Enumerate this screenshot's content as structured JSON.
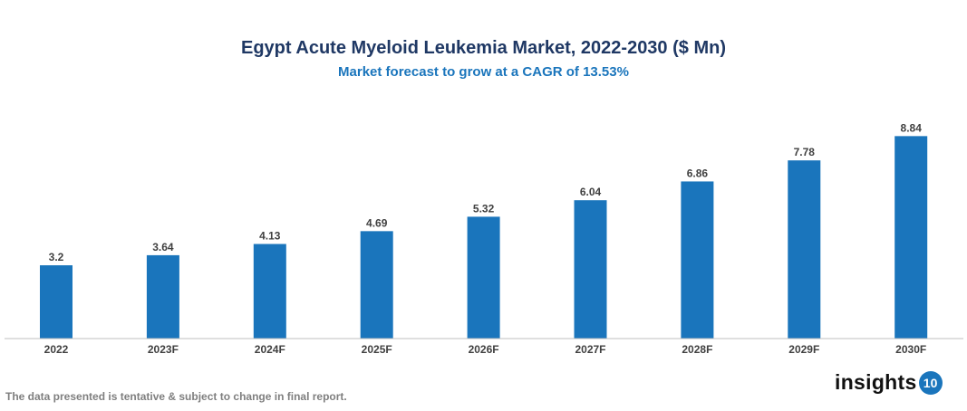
{
  "chart_data": {
    "type": "bar",
    "title": "Egypt Acute Myeloid Leukemia Market, 2022-2030 ($ Mn)",
    "subtitle": "Market forecast to grow at a CAGR of 13.53%",
    "categories": [
      "2022",
      "2023F",
      "2024F",
      "2025F",
      "2026F",
      "2027F",
      "2028F",
      "2029F",
      "2030F"
    ],
    "values": [
      3.2,
      3.64,
      4.13,
      4.69,
      5.32,
      6.04,
      6.86,
      7.78,
      8.84
    ],
    "data_labels": [
      "3.2",
      "3.64",
      "4.13",
      "4.69",
      "5.32",
      "6.04",
      "6.86",
      "7.78",
      "8.84"
    ],
    "xlabel": "",
    "ylabel": "",
    "ylim": [
      0,
      10
    ],
    "grid": false,
    "legend": "none",
    "bar_color": "#1a75bc"
  },
  "footnote": "The data presented is tentative & subject to change in final report.",
  "logo": {
    "text": "insights",
    "badge": "10"
  }
}
